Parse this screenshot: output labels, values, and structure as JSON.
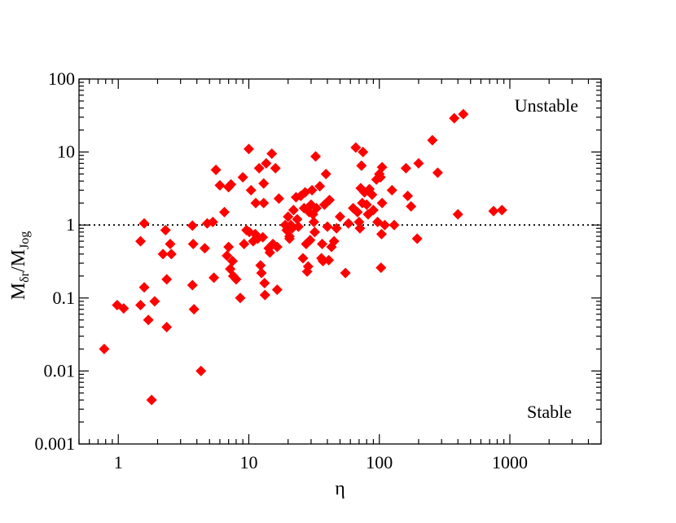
{
  "chart_data": {
    "type": "scatter",
    "xlabel": "η",
    "ylabel": "M",
    "ylabel_sub1": "δr",
    "ylabel_den": "/M",
    "ylabel_sub2": "Jog",
    "xscale": "log",
    "yscale": "log",
    "xlim": [
      0.5,
      5000
    ],
    "ylim": [
      0.001,
      100
    ],
    "x_ticks": [
      1,
      10,
      100,
      1000
    ],
    "x_tick_labels": [
      "1",
      "10",
      "100",
      "1000"
    ],
    "y_ticks": [
      0.001,
      0.01,
      0.1,
      1,
      10,
      100
    ],
    "y_tick_labels": [
      "0.001",
      "0.01",
      "0.1",
      "1",
      "10",
      "100"
    ],
    "grid": false,
    "reference_line": {
      "y": 1,
      "style": "dotted"
    },
    "marker": "diamond",
    "marker_color": "#ff0000",
    "annotations": [
      {
        "text": "Unstable",
        "position": "top-right"
      },
      {
        "text": "Stable",
        "position": "bottom-right"
      }
    ],
    "points": [
      [
        0.78,
        0.02
      ],
      [
        0.98,
        0.08
      ],
      [
        1.1,
        0.072
      ],
      [
        1.48,
        0.08
      ],
      [
        1.48,
        0.6
      ],
      [
        1.58,
        1.05
      ],
      [
        1.58,
        0.14
      ],
      [
        1.7,
        0.05
      ],
      [
        1.8,
        0.004
      ],
      [
        1.9,
        0.09
      ],
      [
        2.2,
        0.4
      ],
      [
        2.3,
        0.85
      ],
      [
        2.35,
        0.18
      ],
      [
        2.35,
        0.04
      ],
      [
        2.5,
        0.55
      ],
      [
        2.55,
        0.4
      ],
      [
        3.7,
        0.98
      ],
      [
        3.75,
        0.55
      ],
      [
        3.7,
        0.15
      ],
      [
        3.8,
        0.07
      ],
      [
        4.3,
        0.01
      ],
      [
        4.6,
        0.48
      ],
      [
        4.8,
        1.05
      ],
      [
        5.3,
        1.1
      ],
      [
        5.6,
        5.7
      ],
      [
        5.4,
        0.19
      ],
      [
        6.0,
        3.5
      ],
      [
        6.5,
        1.5
      ],
      [
        7.0,
        3.3
      ],
      [
        7.3,
        3.6
      ],
      [
        6.8,
        0.38
      ],
      [
        7.0,
        0.5
      ],
      [
        7.2,
        0.25
      ],
      [
        7.5,
        0.32
      ],
      [
        7.6,
        0.2
      ],
      [
        8.0,
        0.18
      ],
      [
        8.6,
        0.1
      ],
      [
        9.0,
        4.5
      ],
      [
        9.2,
        0.55
      ],
      [
        9.6,
        0.85
      ],
      [
        10.0,
        11.0
      ],
      [
        10.1,
        0.8
      ],
      [
        10.4,
        3.0
      ],
      [
        10.8,
        0.6
      ],
      [
        11.2,
        0.75
      ],
      [
        11.3,
        2.0
      ],
      [
        11.7,
        0.65
      ],
      [
        12.0,
        6.0
      ],
      [
        12.3,
        0.28
      ],
      [
        12.5,
        0.22
      ],
      [
        12.8,
        0.68
      ],
      [
        13.0,
        3.7
      ],
      [
        13.0,
        2.0
      ],
      [
        13.2,
        0.16
      ],
      [
        13.3,
        0.11
      ],
      [
        13.6,
        7.0
      ],
      [
        14.2,
        0.48
      ],
      [
        14.5,
        0.42
      ],
      [
        15.0,
        9.5
      ],
      [
        15.3,
        0.55
      ],
      [
        16.0,
        6.0
      ],
      [
        16.5,
        0.5
      ],
      [
        16.5,
        0.13
      ],
      [
        17.0,
        2.3
      ],
      [
        19.0,
        1.0
      ],
      [
        19.5,
        0.85
      ],
      [
        20.0,
        1.3
      ],
      [
        20.5,
        0.65
      ],
      [
        20.5,
        0.7
      ],
      [
        21.0,
        1.0
      ],
      [
        21.5,
        0.9
      ],
      [
        22.0,
        1.6
      ],
      [
        23.0,
        2.4
      ],
      [
        23.5,
        1.2
      ],
      [
        24.0,
        0.95
      ],
      [
        25.0,
        2.5
      ],
      [
        26.0,
        0.35
      ],
      [
        26.5,
        1.7
      ],
      [
        27.0,
        2.8
      ],
      [
        27.5,
        0.55
      ],
      [
        28.0,
        0.23
      ],
      [
        28.5,
        0.27
      ],
      [
        29.0,
        1.5
      ],
      [
        29.5,
        0.62
      ],
      [
        30.0,
        1.9
      ],
      [
        30.5,
        3.0
      ],
      [
        31.0,
        1.4
      ],
      [
        31.5,
        1.1
      ],
      [
        32.0,
        0.8
      ],
      [
        32.5,
        8.7
      ],
      [
        33.0,
        1.7
      ],
      [
        35.0,
        3.4
      ],
      [
        36.0,
        0.35
      ],
      [
        36.5,
        0.55
      ],
      [
        37.0,
        0.32
      ],
      [
        38.0,
        1.9
      ],
      [
        39.0,
        5.0
      ],
      [
        40.0,
        0.95
      ],
      [
        41.0,
        0.33
      ],
      [
        41.5,
        2.2
      ],
      [
        43.0,
        0.5
      ],
      [
        45.0,
        0.6
      ],
      [
        47.0,
        0.9
      ],
      [
        50.0,
        1.3
      ],
      [
        55.0,
        0.22
      ],
      [
        58.0,
        1.05
      ],
      [
        63.0,
        1.7
      ],
      [
        66.0,
        11.5
      ],
      [
        68.0,
        1.5
      ],
      [
        70.0,
        1.1
      ],
      [
        71.0,
        0.9
      ],
      [
        72.0,
        3.2
      ],
      [
        73.0,
        6.5
      ],
      [
        74.0,
        2.0
      ],
      [
        75.0,
        10.0
      ],
      [
        77.0,
        2.8
      ],
      [
        80.0,
        1.9
      ],
      [
        82.0,
        1.4
      ],
      [
        84.0,
        3.1
      ],
      [
        88.0,
        2.6
      ],
      [
        90.0,
        1.6
      ],
      [
        95.0,
        4.2
      ],
      [
        97.0,
        1.1
      ],
      [
        100.0,
        5.0
      ],
      [
        102.0,
        4.5
      ],
      [
        104.0,
        0.75
      ],
      [
        103.0,
        0.26
      ],
      [
        105.0,
        6.2
      ],
      [
        105.0,
        2.0
      ],
      [
        110.0,
        1.0
      ],
      [
        125.0,
        3.0
      ],
      [
        130.0,
        1.0
      ],
      [
        160.0,
        6.0
      ],
      [
        165.0,
        2.5
      ],
      [
        175.0,
        1.8
      ],
      [
        195.0,
        0.65
      ],
      [
        200.0,
        7.0
      ],
      [
        255.0,
        14.5
      ],
      [
        280.0,
        5.2
      ],
      [
        375.0,
        29.0
      ],
      [
        400.0,
        1.4
      ],
      [
        440.0,
        33.0
      ],
      [
        750.0,
        1.55
      ],
      [
        870.0,
        1.6
      ]
    ]
  }
}
